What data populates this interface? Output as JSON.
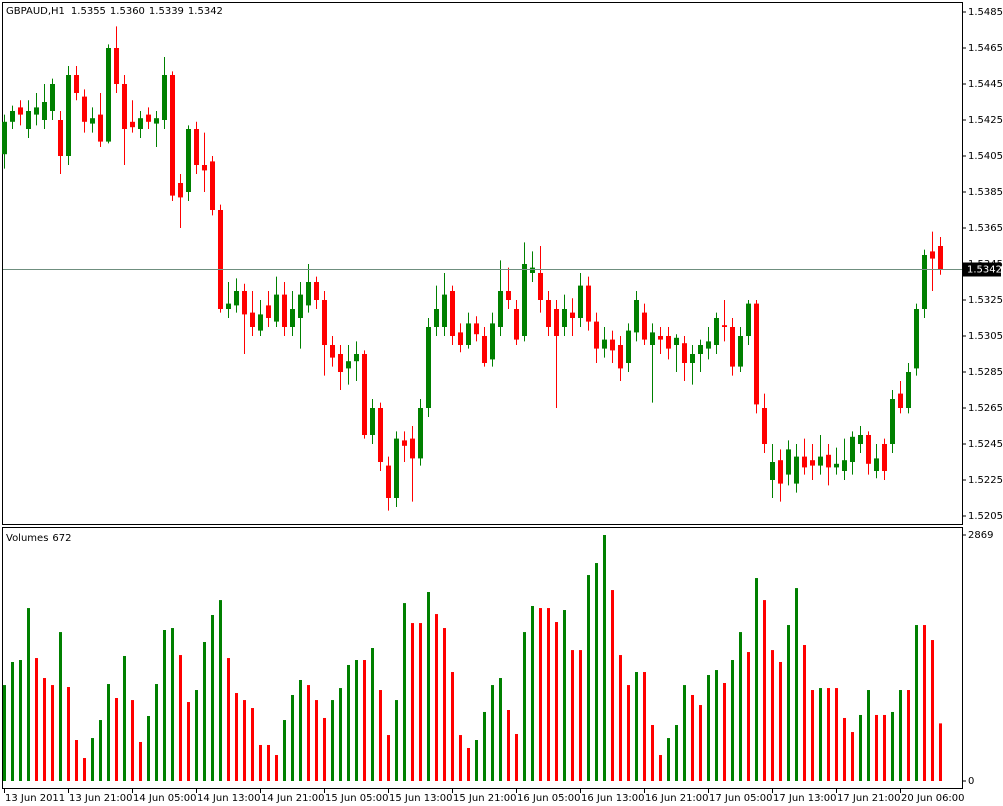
{
  "chart_data": [
    {
      "type": "candlestick",
      "title": "GBPAUD,H1",
      "title_labels": [
        "1.5355",
        "1.5360",
        "1.5339",
        "1.5342"
      ],
      "current_price": {
        "value": 1.5342,
        "label": "1.5342"
      },
      "categories": [
        "13 Jun 2011",
        null,
        null,
        null,
        null,
        null,
        null,
        null,
        "13 Jun 21:00",
        null,
        null,
        null,
        null,
        null,
        null,
        null,
        "14 Jun 05:00",
        null,
        null,
        null,
        null,
        null,
        null,
        null,
        "14 Jun 13:00",
        null,
        null,
        null,
        null,
        null,
        null,
        null,
        "14 Jun 21:00",
        null,
        null,
        null,
        null,
        null,
        null,
        null,
        "15 Jun 05:00",
        null,
        null,
        null,
        null,
        null,
        null,
        null,
        "15 Jun 13:00",
        null,
        null,
        null,
        null,
        null,
        null,
        null,
        "15 Jun 21:00",
        null,
        null,
        null,
        null,
        null,
        null,
        null,
        "16 Jun 05:00",
        null,
        null,
        null,
        null,
        null,
        null,
        null,
        "16 Jun 13:00",
        null,
        null,
        null,
        null,
        null,
        null,
        null,
        "16 Jun 21:00",
        null,
        null,
        null,
        null,
        null,
        null,
        null,
        "17 Jun 05:00",
        null,
        null,
        null,
        null,
        null,
        null,
        null,
        "17 Jun 13:00",
        null,
        null,
        null,
        null,
        null,
        null,
        null,
        "17 Jun 21:00",
        null,
        null,
        null,
        null,
        null,
        null,
        null,
        "20 Jun 06:00",
        null,
        null,
        null,
        null,
        null
      ],
      "open": [
        1.5406,
        1.5424,
        1.5432,
        1.542,
        1.5428,
        1.5425,
        1.543,
        1.5425,
        1.5405,
        1.545,
        1.5438,
        1.5423,
        1.5428,
        1.5413,
        1.5465,
        1.5445,
        1.5424,
        1.542,
        1.5428,
        1.5423,
        1.5425,
        1.545,
        1.539,
        1.5385,
        1.542,
        1.54,
        1.5402,
        1.5375,
        1.532,
        1.5322,
        1.533,
        1.5318,
        1.5308,
        1.5322,
        1.5313,
        1.5328,
        1.531,
        1.5315,
        1.5322,
        1.5335,
        1.5325,
        1.53,
        1.5295,
        1.5287,
        1.5291,
        1.5295,
        1.525,
        1.5265,
        1.5233,
        1.5215,
        1.5247,
        1.5248,
        1.5237,
        1.5265,
        1.531,
        1.531,
        1.533,
        1.5307,
        1.53,
        1.5312,
        1.5305,
        1.5292,
        1.531,
        1.533,
        1.532,
        1.5305,
        1.534,
        1.534,
        1.5325,
        1.532,
        1.531,
        1.5318,
        1.5315,
        1.5333,
        1.5313,
        1.5298,
        1.5303,
        1.53,
        1.529,
        1.5307,
        1.5318,
        1.53,
        1.5305,
        1.5305,
        1.53,
        1.5301,
        1.529,
        1.5295,
        1.5298,
        1.53,
        1.5311,
        1.531,
        1.5288,
        1.5305,
        1.5323,
        1.5265,
        1.5225,
        1.5236,
        1.5228,
        1.5223,
        1.5238,
        1.5236,
        1.5233,
        1.5239,
        1.5232,
        1.523,
        1.5235,
        1.5245,
        1.525,
        1.523,
        1.5245,
        1.5245,
        1.5273,
        1.5265,
        1.5287,
        1.532,
        1.5352,
        1.5355
      ],
      "high": [
        1.5428,
        1.5433,
        1.5436,
        1.5436,
        1.544,
        1.5445,
        1.5448,
        1.543,
        1.5455,
        1.5455,
        1.5442,
        1.5432,
        1.544,
        1.5467,
        1.5477,
        1.545,
        1.5436,
        1.543,
        1.5432,
        1.543,
        1.546,
        1.5452,
        1.5395,
        1.5422,
        1.5424,
        1.5418,
        1.5405,
        1.5378,
        1.5335,
        1.5337,
        1.5334,
        1.533,
        1.5325,
        1.533,
        1.5338,
        1.5335,
        1.533,
        1.5335,
        1.5345,
        1.5338,
        1.533,
        1.5305,
        1.53,
        1.53,
        1.5302,
        1.5297,
        1.527,
        1.5268,
        1.5238,
        1.5252,
        1.5252,
        1.5255,
        1.527,
        1.5315,
        1.5333,
        1.534,
        1.5333,
        1.5312,
        1.5318,
        1.5316,
        1.531,
        1.5318,
        1.5347,
        1.5343,
        1.5325,
        1.5357,
        1.5352,
        1.5355,
        1.533,
        1.5325,
        1.5328,
        1.5326,
        1.534,
        1.5338,
        1.5318,
        1.531,
        1.5308,
        1.5305,
        1.5312,
        1.533,
        1.5323,
        1.5312,
        1.531,
        1.531,
        1.5306,
        1.5305,
        1.53,
        1.5303,
        1.531,
        1.5318,
        1.5325,
        1.5315,
        1.531,
        1.5325,
        1.5325,
        1.5273,
        1.5245,
        1.5242,
        1.5247,
        1.5245,
        1.5248,
        1.5245,
        1.525,
        1.5245,
        1.5243,
        1.5248,
        1.5252,
        1.5255,
        1.5252,
        1.5245,
        1.5248,
        1.5275,
        1.528,
        1.529,
        1.5323,
        1.5353,
        1.5363,
        1.536
      ],
      "low": [
        1.5398,
        1.542,
        1.5422,
        1.5415,
        1.5422,
        1.542,
        1.5425,
        1.5395,
        1.54,
        1.5436,
        1.5418,
        1.5418,
        1.541,
        1.5412,
        1.544,
        1.54,
        1.5418,
        1.5415,
        1.542,
        1.541,
        1.542,
        1.538,
        1.5365,
        1.538,
        1.5395,
        1.5385,
        1.5372,
        1.5318,
        1.5315,
        1.5318,
        1.5295,
        1.5305,
        1.5305,
        1.531,
        1.531,
        1.5305,
        1.5305,
        1.5298,
        1.5318,
        1.532,
        1.5283,
        1.5288,
        1.5275,
        1.5278,
        1.528,
        1.5248,
        1.5245,
        1.523,
        1.5208,
        1.521,
        1.5235,
        1.5213,
        1.5233,
        1.526,
        1.5305,
        1.5305,
        1.53,
        1.5296,
        1.5298,
        1.5302,
        1.5288,
        1.5288,
        1.5305,
        1.532,
        1.53,
        1.5302,
        1.5335,
        1.5318,
        1.5305,
        1.5265,
        1.5305,
        1.5305,
        1.531,
        1.5308,
        1.529,
        1.5293,
        1.529,
        1.528,
        1.5285,
        1.5302,
        1.53,
        1.5268,
        1.5295,
        1.5292,
        1.5285,
        1.528,
        1.5278,
        1.5285,
        1.5292,
        1.5295,
        1.5302,
        1.5283,
        1.5285,
        1.53,
        1.5262,
        1.524,
        1.5215,
        1.5213,
        1.5222,
        1.5218,
        1.5228,
        1.5225,
        1.5228,
        1.5222,
        1.5228,
        1.5225,
        1.5228,
        1.524,
        1.5228,
        1.5226,
        1.5225,
        1.524,
        1.5262,
        1.5262,
        1.5283,
        1.5315,
        1.533,
        1.5339
      ],
      "close": [
        1.5424,
        1.543,
        1.5428,
        1.543,
        1.5432,
        1.5435,
        1.5445,
        1.5405,
        1.545,
        1.544,
        1.5424,
        1.5426,
        1.5413,
        1.5465,
        1.5445,
        1.542,
        1.5421,
        1.5426,
        1.5424,
        1.5426,
        1.545,
        1.5383,
        1.5382,
        1.542,
        1.54,
        1.5397,
        1.5375,
        1.532,
        1.5323,
        1.533,
        1.5317,
        1.531,
        1.5317,
        1.5315,
        1.5328,
        1.531,
        1.532,
        1.5328,
        1.5335,
        1.5325,
        1.53,
        1.5293,
        1.5285,
        1.5291,
        1.5295,
        1.525,
        1.5265,
        1.5235,
        1.5215,
        1.5248,
        1.5244,
        1.5237,
        1.5265,
        1.531,
        1.532,
        1.5328,
        1.5305,
        1.53,
        1.5312,
        1.5306,
        1.529,
        1.5312,
        1.533,
        1.5325,
        1.5303,
        1.5345,
        1.5343,
        1.5325,
        1.531,
        1.5305,
        1.532,
        1.5315,
        1.5333,
        1.5313,
        1.5298,
        1.5303,
        1.5297,
        1.5287,
        1.5308,
        1.5325,
        1.5303,
        1.5307,
        1.5303,
        1.5298,
        1.5304,
        1.529,
        1.5295,
        1.53,
        1.5302,
        1.5315,
        1.531,
        1.5288,
        1.5305,
        1.5323,
        1.5267,
        1.5245,
        1.5235,
        1.5223,
        1.5242,
        1.5238,
        1.5232,
        1.5233,
        1.5238,
        1.5232,
        1.5234,
        1.5236,
        1.5249,
        1.525,
        1.5234,
        1.5237,
        1.523,
        1.527,
        1.5265,
        1.5285,
        1.532,
        1.535,
        1.5348,
        1.5342
      ],
      "ylim": [
        1.5205,
        1.5485
      ],
      "yticks": [
        1.5485,
        1.5465,
        1.5445,
        1.5425,
        1.5405,
        1.5385,
        1.5365,
        1.5345,
        1.5325,
        1.5305,
        1.5285,
        1.5265,
        1.5245,
        1.5225,
        1.5205
      ],
      "up_color": "#008000",
      "down_color": "#ff0000",
      "price_line_color": "#6f8f7f"
    },
    {
      "type": "bar",
      "title": "Volumes",
      "values": [
        1119,
        1388,
        1411,
        2017,
        1434,
        1201,
        1119,
        1737,
        1096,
        478,
        268,
        501,
        711,
        1131,
        968,
        1458,
        944,
        455,
        758,
        1131,
        1761,
        1784,
        1469,
        921,
        1061,
        1621,
        1936,
        2110,
        1434,
        1026,
        944,
        851,
        420,
        420,
        303,
        711,
        1003,
        1178,
        1119,
        944,
        735,
        944,
        1084,
        1353,
        1411,
        1411,
        1551,
        1061,
        536,
        944,
        2075,
        1842,
        1842,
        2204,
        1947,
        1784,
        1271,
        536,
        385,
        478,
        805,
        1119,
        1201,
        828,
        548,
        1737,
        2041,
        2017,
        2017,
        1854,
        1994,
        1527,
        1527,
        2402,
        2542,
        2869,
        2227,
        1469,
        1119,
        1271,
        1271,
        653,
        303,
        501,
        653,
        1119,
        1003,
        886,
        1236,
        1294,
        1143,
        1411,
        1737,
        1504,
        2367,
        2110,
        1527,
        1388,
        1819,
        2250,
        1586,
        1061,
        1084,
        1084,
        1084,
        735,
        571,
        770,
        1061,
        770,
        770,
        805,
        1061,
        1061,
        1819,
        1819,
        1644,
        672
      ],
      "ylim": [
        0,
        2869
      ],
      "yticks": [
        0,
        2869
      ],
      "up_color": "#008000",
      "down_color": "#ff0000"
    }
  ]
}
